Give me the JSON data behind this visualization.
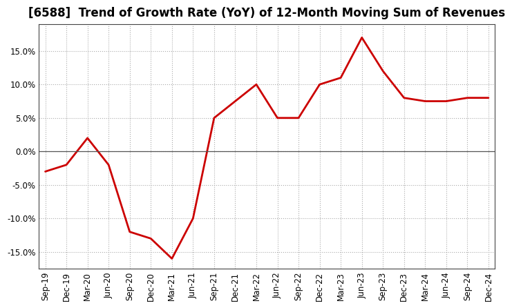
{
  "title": "[6588]  Trend of Growth Rate (YoY) of 12-Month Moving Sum of Revenues",
  "x_labels": [
    "Sep-19",
    "Dec-19",
    "Mar-20",
    "Jun-20",
    "Sep-20",
    "Dec-20",
    "Mar-21",
    "Jun-21",
    "Sep-21",
    "Dec-21",
    "Mar-22",
    "Jun-22",
    "Sep-22",
    "Dec-22",
    "Mar-23",
    "Jun-23",
    "Sep-23",
    "Dec-23",
    "Mar-24",
    "Jun-24",
    "Sep-24",
    "Dec-24"
  ],
  "y_values": [
    -3.0,
    -2.0,
    2.0,
    -2.0,
    -12.0,
    -13.0,
    -16.0,
    -10.0,
    5.0,
    7.5,
    10.0,
    5.0,
    5.0,
    10.0,
    11.0,
    17.0,
    12.0,
    8.0,
    7.5,
    7.5,
    8.0,
    8.0
  ],
  "line_color": "#cc0000",
  "line_width": 2.0,
  "ylim": [
    -17.5,
    19.0
  ],
  "yticks": [
    -15.0,
    -10.0,
    -5.0,
    0.0,
    5.0,
    10.0,
    15.0
  ],
  "grid_color": "#aaaaaa",
  "background_color": "#ffffff",
  "plot_bg_color": "#ffffff",
  "zero_line_color": "#555555",
  "title_fontsize": 12,
  "tick_fontsize": 8.5
}
